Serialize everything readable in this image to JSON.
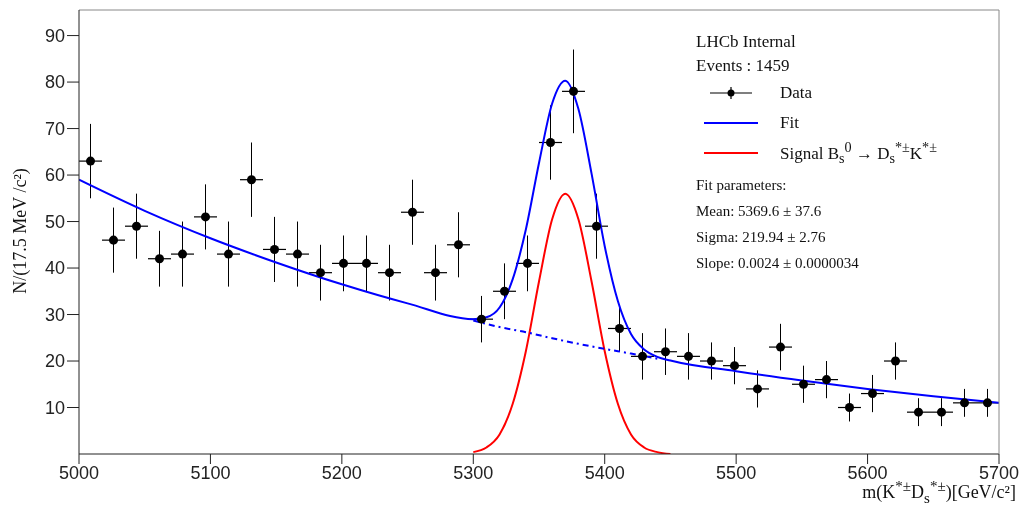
{
  "chart_data": {
    "type": "scatter",
    "xlabel": "m(K$^{*±}$D$_{s}$$^{*±}$)[GeV/c²]",
    "ylabel": "N/(17.5 MeV /c²)",
    "xlim": [
      5000,
      5700
    ],
    "xticks": [
      5000,
      5100,
      5200,
      5300,
      5400,
      5500,
      5600,
      5700
    ],
    "ylim": [
      0,
      95.5
    ],
    "yticks": [
      10,
      20,
      30,
      40,
      50,
      60,
      70,
      80,
      90
    ],
    "grid": false,
    "legend": "top right",
    "annotations": [
      "LHCb Internal",
      "Events : 1459",
      "Fit parameters:",
      "Mean: 5369.6 ± 37.6",
      "Sigma: 219.94 ± 2.76",
      "Slope: 0.0024 ± 0.0000034"
    ],
    "series": [
      {
        "name": "Data",
        "color": "#000000",
        "marker": "circle",
        "x": [
          5008.75,
          5026.25,
          5043.75,
          5061.25,
          5078.75,
          5096.25,
          5113.75,
          5131.25,
          5148.75,
          5166.25,
          5183.75,
          5201.25,
          5218.75,
          5236.25,
          5253.75,
          5271.25,
          5288.75,
          5306.25,
          5323.75,
          5341.25,
          5358.75,
          5376.25,
          5393.75,
          5411.25,
          5428.75,
          5446.25,
          5463.75,
          5481.25,
          5498.75,
          5516.25,
          5533.75,
          5551.25,
          5568.75,
          5586.25,
          5603.75,
          5621.25,
          5638.75,
          5656.25,
          5673.75,
          5691.25
        ],
        "values": [
          63,
          46,
          49,
          42,
          43,
          51,
          43,
          59,
          44,
          43,
          39,
          41,
          41,
          39,
          52,
          39,
          45,
          29,
          35,
          41,
          67,
          78,
          49,
          27,
          21,
          22,
          21,
          20,
          19,
          14,
          23,
          15,
          16,
          10,
          13,
          20,
          9,
          9,
          11,
          11
        ],
        "errors": [
          8,
          7,
          7,
          6,
          7,
          7,
          7,
          8,
          7,
          7,
          6,
          6,
          6,
          6,
          7,
          6,
          7,
          5,
          6,
          6,
          8,
          9,
          7,
          5,
          5,
          5,
          5,
          4,
          4,
          4,
          5,
          4,
          4,
          3,
          4,
          4,
          3,
          3,
          3,
          3
        ],
        "xerrors": [
          8.75,
          8.75,
          8.75,
          8.75,
          8.75,
          8.75,
          8.75,
          8.75,
          8.75,
          8.75,
          8.75,
          8.75,
          8.75,
          8.75,
          8.75,
          8.75,
          8.75,
          8.75,
          8.75,
          8.75,
          8.75,
          8.75,
          8.75,
          8.75,
          8.75,
          8.75,
          8.75,
          8.75,
          8.75,
          8.75,
          8.75,
          8.75,
          8.75,
          8.75,
          8.75,
          8.75,
          8.75,
          8.75,
          8.75,
          8.75
        ]
      },
      {
        "name": "Fit",
        "type": "line",
        "color": "#0000ff",
        "marker": "none",
        "line_style": "solid",
        "x": [
          5000,
          5050,
          5100,
          5150,
          5200,
          5250,
          5300,
          5310,
          5320,
          5330,
          5340,
          5350,
          5360,
          5370,
          5380,
          5390,
          5400,
          5410,
          5420,
          5430,
          5440,
          5450,
          5500,
          5550,
          5600,
          5650,
          5700
        ],
        "values": [
          59,
          52.3,
          46.4,
          41.2,
          36.5,
          32.4,
          29,
          29.4,
          31.5,
          37.6,
          48.3,
          62.6,
          75.4,
          80.3,
          74.2,
          60.3,
          44.7,
          32.9,
          25.8,
          22.5,
          20.9,
          20.1,
          17.8,
          15.8,
          14,
          12.4,
          11
        ]
      },
      {
        "name": "Signal B$_{s}$$^{0}$ → D$_{s}$$^{*±}$K$^{*±}$",
        "type": "line",
        "color": "#ff0000",
        "marker": "none",
        "line_style": "solid",
        "x": [
          5300,
          5310,
          5320,
          5330,
          5340,
          5350,
          5360,
          5370,
          5380,
          5390,
          5400,
          5410,
          5420,
          5430,
          5440,
          5450
        ],
        "values": [
          0.4,
          1.4,
          4.2,
          10.8,
          22.1,
          37.1,
          50.5,
          56,
          50.5,
          37.1,
          22.1,
          10.8,
          4.2,
          1.4,
          0.4,
          0
        ]
      },
      {
        "type": "line",
        "color": "#0000ff",
        "marker": "none",
        "line_style": "dashed",
        "x": [
          5300,
          5320,
          5340,
          5360,
          5380,
          5400,
          5420,
          5440
        ],
        "values": [
          28.7,
          27.3,
          26.2,
          24.9,
          23.7,
          22.6,
          21.6,
          20.5
        ]
      }
    ]
  }
}
